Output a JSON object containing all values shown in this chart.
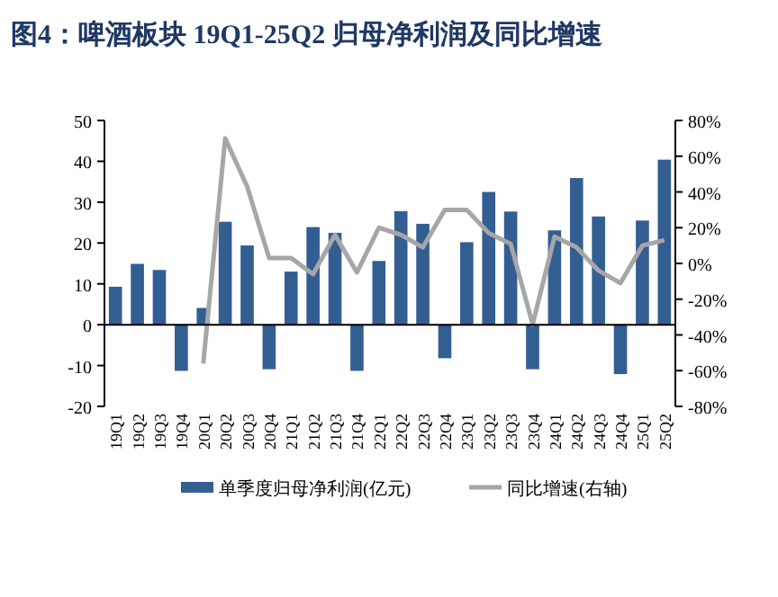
{
  "chart_data": {
    "type": "bar",
    "title": "图4：啤酒板块 19Q1-25Q2 归母净利润及同比增速",
    "categories": [
      "19Q1",
      "19Q2",
      "19Q3",
      "19Q4",
      "20Q1",
      "20Q2",
      "20Q3",
      "20Q4",
      "21Q1",
      "21Q2",
      "21Q3",
      "21Q4",
      "22Q1",
      "22Q2",
      "22Q3",
      "22Q4",
      "23Q1",
      "23Q2",
      "23Q3",
      "23Q4",
      "24Q1",
      "24Q2",
      "24Q3",
      "24Q4",
      "25Q1",
      "25Q2"
    ],
    "series": [
      {
        "name": "单季度归母净利润(亿元)",
        "color": "#335e92",
        "values": [
          9.3,
          14.9,
          13.4,
          -11.3,
          4.1,
          25.2,
          19.4,
          -10.9,
          13.0,
          23.9,
          22.5,
          -11.3,
          15.6,
          27.8,
          24.7,
          -8.2,
          20.2,
          32.5,
          27.7,
          -10.9,
          23.1,
          35.9,
          26.5,
          -12.1,
          25.5,
          40.4
        ]
      },
      {
        "name": "同比增速(右轴)",
        "type": "line",
        "axis": "y2",
        "color": "#a6a6a6",
        "values": [
          null,
          null,
          null,
          null,
          -56,
          70,
          43,
          3,
          3,
          -6,
          16,
          -5,
          20,
          16,
          9,
          30,
          30,
          17,
          11,
          -34,
          15,
          9,
          -4,
          -11,
          10,
          13
        ]
      }
    ],
    "ylim": [
      -20,
      50
    ],
    "yticks": [
      -20,
      -10,
      0,
      10,
      20,
      30,
      40,
      50
    ],
    "y2lim": [
      -80,
      80
    ],
    "y2ticks": [
      {
        "value": -80,
        "label": "-80%"
      },
      {
        "value": -60,
        "label": "-60%"
      },
      {
        "value": -40,
        "label": "-40%"
      },
      {
        "value": -20,
        "label": "-20%"
      },
      {
        "value": 0,
        "label": "0%"
      },
      {
        "value": 20,
        "label": "20%"
      },
      {
        "value": 40,
        "label": "40%"
      },
      {
        "value": 60,
        "label": "60%"
      },
      {
        "value": 80,
        "label": "80%"
      }
    ],
    "legend": "bottom"
  }
}
